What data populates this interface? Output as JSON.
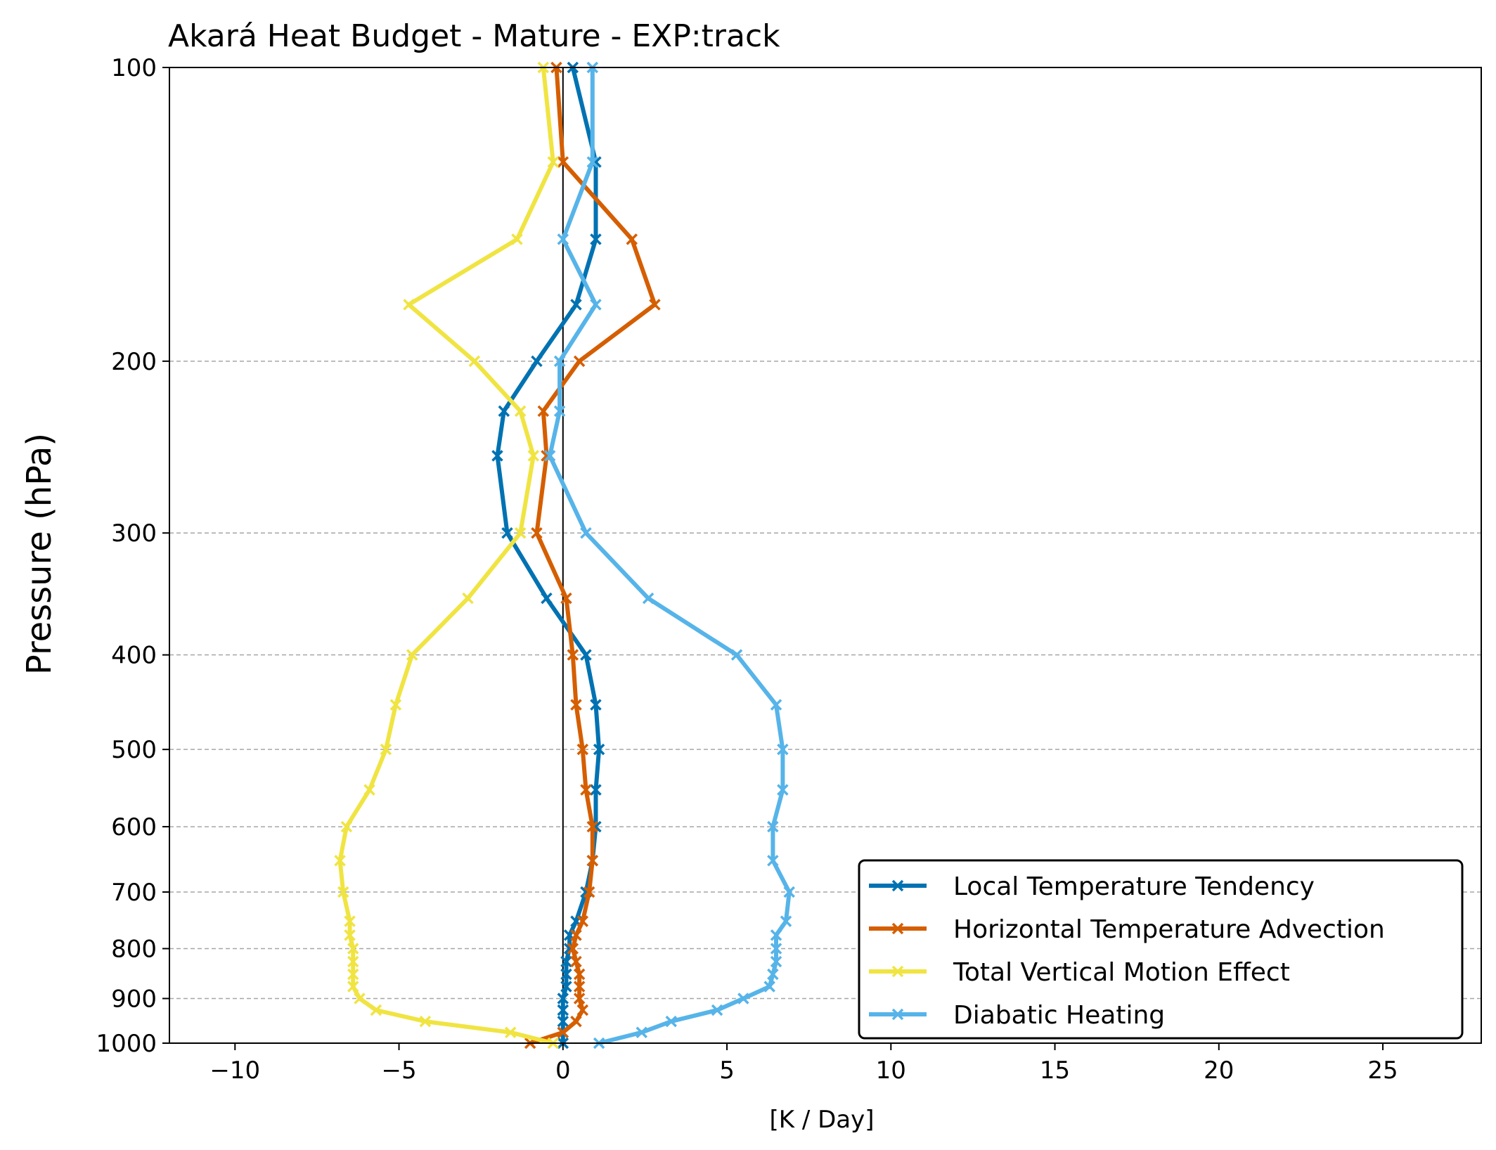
{
  "chart_data": {
    "type": "line",
    "title": "Akará Heat Budget - Mature - EXP:track",
    "xlabel": "[K / Day]",
    "ylabel": "Pressure (hPa)",
    "xlim": [
      -12,
      28
    ],
    "ylim": [
      1000,
      100
    ],
    "y_scale": "log",
    "x_ticks": [
      -10,
      -5,
      0,
      5,
      10,
      15,
      20,
      25
    ],
    "x_tick_labels": [
      "−10",
      "−5",
      "0",
      "5",
      "10",
      "15",
      "20",
      "25"
    ],
    "y_ticks": [
      100,
      200,
      300,
      400,
      500,
      600,
      700,
      800,
      900,
      1000
    ],
    "y_tick_labels": [
      "100",
      "200",
      "300",
      "400",
      "500",
      "600",
      "700",
      "800",
      "900",
      "1000"
    ],
    "grid": "horizontal dashed",
    "zero_line": true,
    "legend_position": "lower right",
    "pressure_levels": [
      100,
      125,
      150,
      175,
      200,
      225,
      250,
      300,
      350,
      400,
      450,
      500,
      550,
      600,
      650,
      700,
      750,
      775,
      800,
      825,
      850,
      875,
      900,
      925,
      950,
      975,
      1000
    ],
    "series": [
      {
        "name": "Local Temperature Tendency",
        "color": "#0072B2",
        "values": [
          0.3,
          1.0,
          1.0,
          0.4,
          -0.8,
          -1.8,
          -2.0,
          -1.7,
          -0.5,
          0.7,
          1.0,
          1.1,
          1.0,
          1.0,
          0.9,
          0.7,
          0.4,
          0.2,
          0.2,
          0.1,
          0.1,
          0.1,
          0.0,
          0.0,
          0.0,
          0.0,
          0.0
        ]
      },
      {
        "name": "Horizontal Temperature Advection",
        "color": "#D55E00",
        "values": [
          -0.2,
          0.0,
          2.1,
          2.8,
          0.5,
          -0.6,
          -0.5,
          -0.8,
          0.1,
          0.3,
          0.4,
          0.6,
          0.7,
          0.9,
          0.9,
          0.8,
          0.6,
          0.4,
          0.3,
          0.4,
          0.5,
          0.5,
          0.5,
          0.6,
          0.4,
          0.0,
          -1.0
        ]
      },
      {
        "name": "Total Vertical Motion Effect",
        "color": "#F0E442",
        "values": [
          -0.6,
          -0.3,
          -1.4,
          -4.7,
          -2.7,
          -1.3,
          -0.9,
          -1.3,
          -2.9,
          -4.6,
          -5.1,
          -5.4,
          -5.9,
          -6.6,
          -6.8,
          -6.7,
          -6.5,
          -6.5,
          -6.4,
          -6.4,
          -6.4,
          -6.4,
          -6.2,
          -5.7,
          -4.2,
          -1.6,
          -0.3
        ]
      },
      {
        "name": "Diabatic Heating",
        "color": "#56B4E9",
        "values": [
          0.9,
          0.9,
          0.0,
          1.0,
          -0.1,
          -0.1,
          -0.4,
          0.7,
          2.6,
          5.3,
          6.5,
          6.7,
          6.7,
          6.4,
          6.4,
          6.9,
          6.8,
          6.5,
          6.5,
          6.5,
          6.4,
          6.3,
          5.5,
          4.7,
          3.3,
          2.4,
          1.1
        ]
      }
    ]
  }
}
